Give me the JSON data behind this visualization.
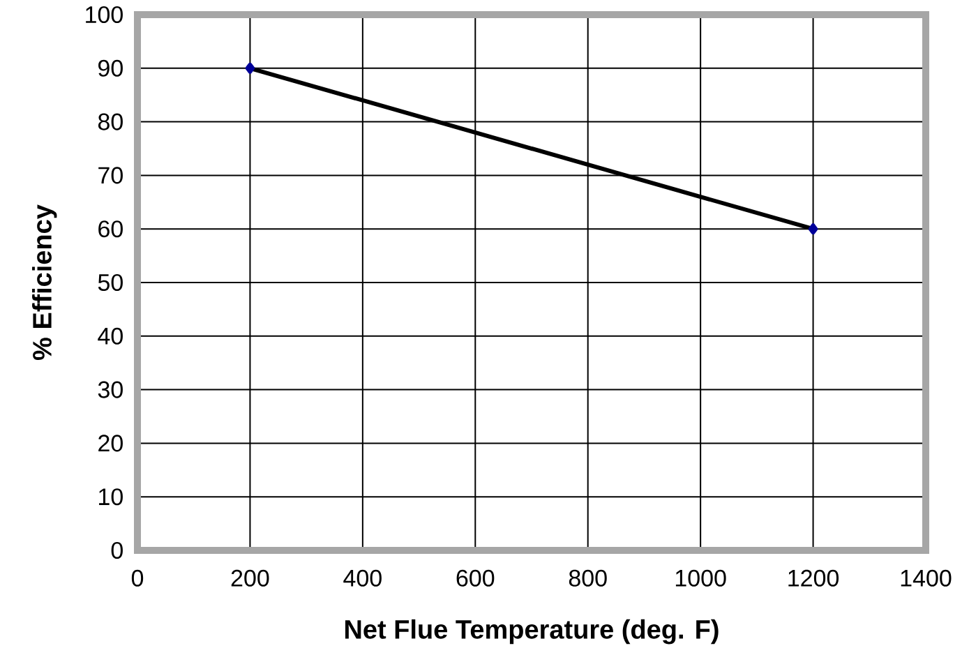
{
  "chart_data": {
    "type": "line",
    "xlabel": "Net Flue Temperature (deg. F)",
    "ylabel": "% Efficiency",
    "x": [
      200,
      1200
    ],
    "series": [
      {
        "color": "#000000",
        "values": [
          90,
          60
        ]
      }
    ],
    "xlim": [
      0,
      1400
    ],
    "ylim": [
      0,
      100
    ],
    "xticks": [
      0,
      200,
      400,
      600,
      800,
      1000,
      1200,
      1400
    ],
    "yticks": [
      0,
      10,
      20,
      30,
      40,
      50,
      60,
      70,
      80,
      90,
      100
    ],
    "grid": true,
    "marker": "diamond",
    "line_style": "solid"
  }
}
